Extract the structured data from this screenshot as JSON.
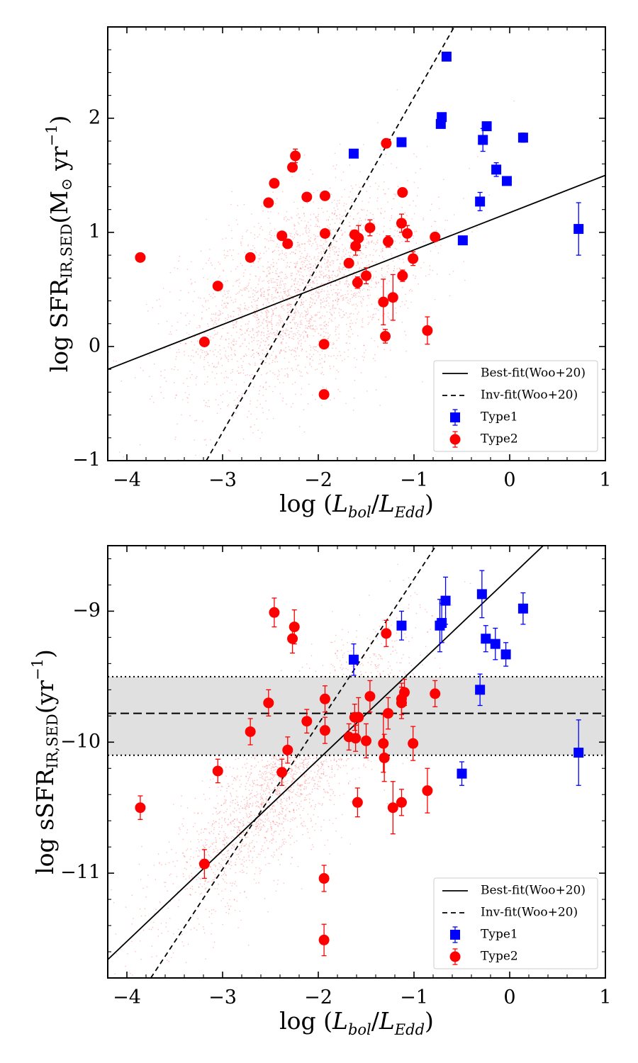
{
  "x_axis_title": "log (L_bol/L_Edd)",
  "legend_labels": {
    "bestfit": "Best-fit(Woo+20)",
    "invfit": "Inv-fit(Woo+20)",
    "type1": "Type1",
    "type2": "Type2"
  },
  "colors": {
    "type1": "#0000ff",
    "type2": "#ff0000",
    "background_points": "#ff0000",
    "band": "#e0e0e0"
  },
  "chart_data": [
    {
      "type": "scatter",
      "ylabel": "log SFR_IR,SED(M_⊙ yr^-1)",
      "xlabel": "log (L_bol/L_Edd)",
      "xlim": [
        -4.2,
        1.0
      ],
      "ylim": [
        -1.0,
        2.8
      ],
      "x_ticks": [
        -4,
        -3,
        -2,
        -1,
        0,
        1
      ],
      "y_ticks": [
        -1,
        0,
        1,
        2
      ],
      "x_tick_labels": [
        "−4",
        "−3",
        "−2",
        "−1",
        "0",
        "1"
      ],
      "y_tick_labels": [
        "−1",
        "0",
        "1",
        "2"
      ],
      "legend_position": "lower-right",
      "lines": [
        {
          "name": "Best-fit(Woo+20)",
          "style": "solid",
          "points": [
            [
              -4.2,
              -0.2
            ],
            [
              1.0,
              1.5
            ]
          ]
        },
        {
          "name": "Inv-fit(Woo+20)",
          "style": "dashed",
          "points": [
            [
              -3.17,
              -1.0
            ],
            [
              -0.58,
              2.8
            ]
          ]
        }
      ],
      "background_cloud": {
        "center_x": -2.2,
        "center_y": 0.45,
        "slope": 0.35,
        "note": "SDSS sample"
      },
      "series": [
        {
          "name": "Type1",
          "marker": "square",
          "points": [
            {
              "x": -1.63,
              "y": 1.69,
              "err": 0.03
            },
            {
              "x": -1.13,
              "y": 1.79,
              "err": 0.02
            },
            {
              "x": -0.66,
              "y": 2.54,
              "err": 0.02
            },
            {
              "x": -0.71,
              "y": 2.01,
              "err": 0.03
            },
            {
              "x": -0.72,
              "y": 1.95,
              "err": 0.03
            },
            {
              "x": -0.24,
              "y": 1.93,
              "err": 0.03
            },
            {
              "x": -0.28,
              "y": 1.81,
              "err": 0.1
            },
            {
              "x": 0.14,
              "y": 1.83,
              "err": 0.04
            },
            {
              "x": -0.14,
              "y": 1.55,
              "err": 0.06
            },
            {
              "x": -0.03,
              "y": 1.45,
              "err": 0.03
            },
            {
              "x": -0.31,
              "y": 1.27,
              "err": 0.08
            },
            {
              "x": -0.49,
              "y": 0.93,
              "err": 0.03
            },
            {
              "x": 0.72,
              "y": 1.03,
              "err": 0.23
            }
          ]
        },
        {
          "name": "Type2",
          "marker": "circle",
          "points": [
            {
              "x": -3.86,
              "y": 0.78,
              "err": 0.02
            },
            {
              "x": -3.05,
              "y": 0.53,
              "err": 0.02
            },
            {
              "x": -3.19,
              "y": 0.04,
              "err": 0.02
            },
            {
              "x": -2.71,
              "y": 0.78,
              "err": 0.02
            },
            {
              "x": -2.52,
              "y": 1.26,
              "err": 0.02
            },
            {
              "x": -2.46,
              "y": 1.43,
              "err": 0.02
            },
            {
              "x": -2.38,
              "y": 0.97,
              "err": 0.02
            },
            {
              "x": -2.32,
              "y": 0.9,
              "err": 0.02
            },
            {
              "x": -2.27,
              "y": 1.57,
              "err": 0.04
            },
            {
              "x": -2.24,
              "y": 1.67,
              "err": 0.06
            },
            {
              "x": -2.12,
              "y": 1.31,
              "err": 0.02
            },
            {
              "x": -1.93,
              "y": 1.32,
              "err": 0.02
            },
            {
              "x": -1.93,
              "y": 0.99,
              "err": 0.02
            },
            {
              "x": -1.94,
              "y": 0.02,
              "err": 0.02
            },
            {
              "x": -1.94,
              "y": -0.42,
              "err": 0.04
            },
            {
              "x": -1.68,
              "y": 0.73,
              "err": 0.04
            },
            {
              "x": -1.62,
              "y": 0.98,
              "err": 0.03
            },
            {
              "x": -1.61,
              "y": 0.88,
              "err": 0.08
            },
            {
              "x": -1.58,
              "y": 0.95,
              "err": 0.11
            },
            {
              "x": -1.59,
              "y": 0.56,
              "err": 0.05
            },
            {
              "x": -1.5,
              "y": 0.62,
              "err": 0.07
            },
            {
              "x": -1.46,
              "y": 1.04,
              "err": 0.07
            },
            {
              "x": -1.29,
              "y": 1.78,
              "err": 0.02
            },
            {
              "x": -1.27,
              "y": 0.92,
              "err": 0.05
            },
            {
              "x": -1.32,
              "y": 0.39,
              "err": 0.2
            },
            {
              "x": -1.3,
              "y": 0.09,
              "err": 0.06
            },
            {
              "x": -1.22,
              "y": 0.43,
              "err": 0.2
            },
            {
              "x": -1.12,
              "y": 1.35,
              "err": 0.03
            },
            {
              "x": -1.13,
              "y": 1.08,
              "err": 0.08
            },
            {
              "x": -1.07,
              "y": 0.99,
              "err": 0.07
            },
            {
              "x": -1.12,
              "y": 0.62,
              "err": 0.05
            },
            {
              "x": -1.01,
              "y": 0.77,
              "err": 0.06
            },
            {
              "x": -0.78,
              "y": 0.96,
              "err": 0.03
            },
            {
              "x": -0.86,
              "y": 0.14,
              "err": 0.12
            }
          ]
        }
      ]
    },
    {
      "type": "scatter",
      "ylabel": "log sSFR_IR,SED(yr^-1)",
      "xlabel": "log (L_bol/L_Edd)",
      "xlim": [
        -4.2,
        1.0
      ],
      "ylim": [
        -11.8,
        -8.5
      ],
      "x_ticks": [
        -4,
        -3,
        -2,
        -1,
        0,
        1
      ],
      "y_ticks": [
        -11,
        -10,
        -9
      ],
      "x_tick_labels": [
        "−4",
        "−3",
        "−2",
        "−1",
        "0",
        "1"
      ],
      "y_tick_labels": [
        "−11",
        "−10",
        "−9"
      ],
      "legend_position": "lower-right",
      "lines": [
        {
          "name": "Best-fit(Woo+20)",
          "style": "solid",
          "points": [
            [
              -4.2,
              -11.66
            ],
            [
              0.35,
              -8.5
            ]
          ]
        },
        {
          "name": "Inv-fit(Woo+20)",
          "style": "dashed",
          "points": [
            [
              -3.75,
              -11.8
            ],
            [
              -0.77,
              -8.5
            ]
          ]
        }
      ],
      "band": {
        "center": -9.78,
        "low": -10.1,
        "high": -9.5
      },
      "background_cloud": {
        "center_x": -2.3,
        "center_y": -10.25,
        "slope": 0.72,
        "note": "SDSS sample"
      },
      "series": [
        {
          "name": "Type1",
          "marker": "square",
          "points": [
            {
              "x": -1.63,
              "y": -9.37,
              "err": 0.12
            },
            {
              "x": -1.13,
              "y": -9.11,
              "err": 0.11
            },
            {
              "x": -0.67,
              "y": -8.92,
              "err": 0.18
            },
            {
              "x": -0.71,
              "y": -9.09,
              "err": 0.15
            },
            {
              "x": -0.73,
              "y": -9.11,
              "err": 0.2
            },
            {
              "x": -0.29,
              "y": -8.87,
              "err": 0.18
            },
            {
              "x": -0.25,
              "y": -9.21,
              "err": 0.1
            },
            {
              "x": -0.15,
              "y": -9.25,
              "err": 0.12
            },
            {
              "x": -0.04,
              "y": -9.33,
              "err": 0.09
            },
            {
              "x": 0.14,
              "y": -8.98,
              "err": 0.12
            },
            {
              "x": -0.31,
              "y": -9.6,
              "err": 0.12
            },
            {
              "x": -0.5,
              "y": -10.24,
              "err": 0.09
            },
            {
              "x": 0.72,
              "y": -10.08,
              "err": 0.25
            }
          ]
        },
        {
          "name": "Type2",
          "marker": "circle",
          "points": [
            {
              "x": -3.86,
              "y": -10.5,
              "err": 0.09
            },
            {
              "x": -3.05,
              "y": -10.22,
              "err": 0.09
            },
            {
              "x": -3.19,
              "y": -10.93,
              "err": 0.11
            },
            {
              "x": -2.71,
              "y": -9.92,
              "err": 0.1
            },
            {
              "x": -2.52,
              "y": -9.7,
              "err": 0.1
            },
            {
              "x": -2.46,
              "y": -9.01,
              "err": 0.11
            },
            {
              "x": -2.38,
              "y": -10.23,
              "err": 0.1
            },
            {
              "x": -2.32,
              "y": -10.06,
              "err": 0.1
            },
            {
              "x": -2.27,
              "y": -9.21,
              "err": 0.11
            },
            {
              "x": -2.25,
              "y": -9.12,
              "err": 0.13
            },
            {
              "x": -2.12,
              "y": -9.84,
              "err": 0.09
            },
            {
              "x": -1.93,
              "y": -9.67,
              "err": 0.1
            },
            {
              "x": -1.93,
              "y": -9.91,
              "err": 0.1
            },
            {
              "x": -1.94,
              "y": -11.04,
              "err": 0.1
            },
            {
              "x": -1.94,
              "y": -11.51,
              "err": 0.12
            },
            {
              "x": -1.68,
              "y": -9.96,
              "err": 0.1
            },
            {
              "x": -1.62,
              "y": -9.81,
              "err": 0.1
            },
            {
              "x": -1.61,
              "y": -9.97,
              "err": 0.1
            },
            {
              "x": -1.58,
              "y": -9.81,
              "err": 0.15
            },
            {
              "x": -1.59,
              "y": -10.46,
              "err": 0.11
            },
            {
              "x": -1.5,
              "y": -9.99,
              "err": 0.13
            },
            {
              "x": -1.46,
              "y": -9.65,
              "err": 0.12
            },
            {
              "x": -1.29,
              "y": -9.17,
              "err": 0.1
            },
            {
              "x": -1.27,
              "y": -9.78,
              "err": 0.12
            },
            {
              "x": -1.32,
              "y": -10.01,
              "err": 0.22
            },
            {
              "x": -1.31,
              "y": -10.12,
              "err": 0.18
            },
            {
              "x": -1.22,
              "y": -10.5,
              "err": 0.2
            },
            {
              "x": -1.1,
              "y": -9.62,
              "err": 0.1
            },
            {
              "x": -1.13,
              "y": -9.67,
              "err": 0.12
            },
            {
              "x": -1.13,
              "y": -9.7,
              "err": 0.12
            },
            {
              "x": -1.13,
              "y": -10.46,
              "err": 0.1
            },
            {
              "x": -1.01,
              "y": -10.01,
              "err": 0.13
            },
            {
              "x": -0.78,
              "y": -9.63,
              "err": 0.1
            },
            {
              "x": -0.86,
              "y": -10.37,
              "err": 0.17
            }
          ]
        }
      ]
    }
  ]
}
